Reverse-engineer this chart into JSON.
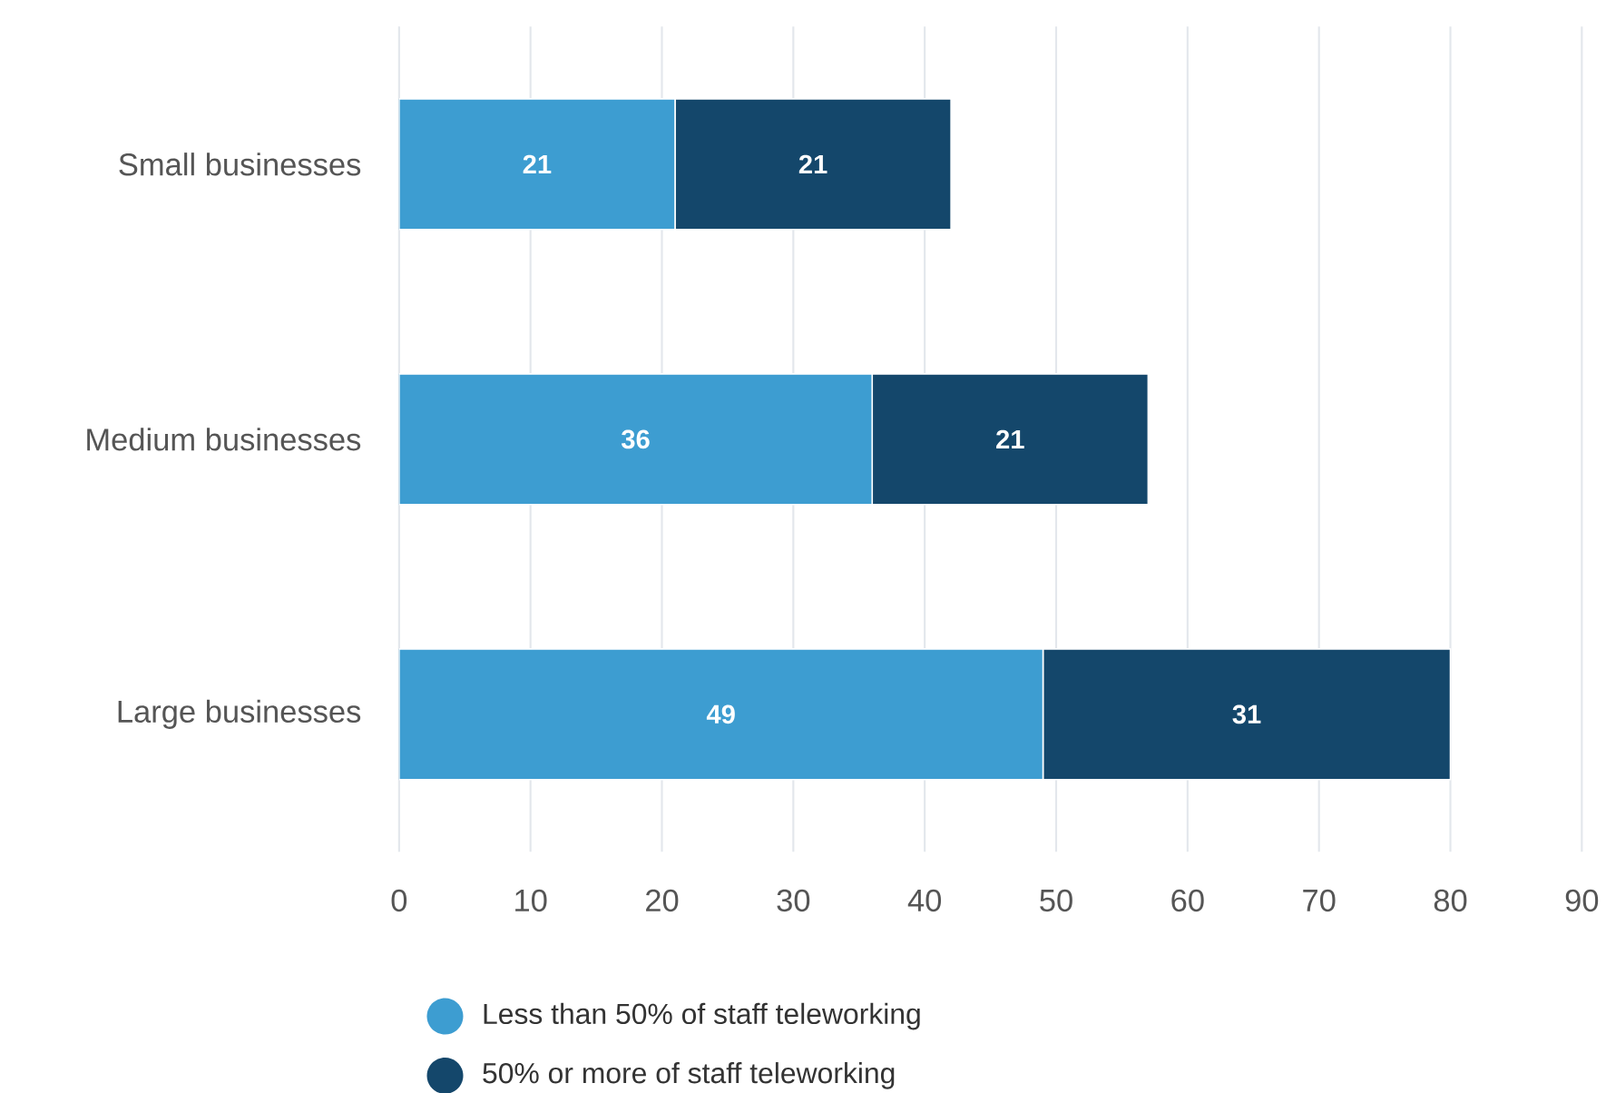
{
  "chart_data": {
    "type": "bar",
    "orientation": "horizontal",
    "stacked": true,
    "categories": [
      "Small businesses",
      "Medium businesses",
      "Large businesses"
    ],
    "series": [
      {
        "name": "Less than 50% of staff teleworking",
        "color": "#3d9dd1",
        "values": [
          21,
          36,
          49
        ]
      },
      {
        "name": "50% or more of staff teleworking",
        "color": "#14476b",
        "values": [
          21,
          21,
          31
        ]
      }
    ],
    "xlim": [
      0,
      90
    ],
    "xticks": [
      0,
      10,
      20,
      30,
      40,
      50,
      60,
      70,
      80,
      90
    ],
    "grid": "x",
    "legend": "bottom left",
    "marker": "circle",
    "data_labels": true
  }
}
